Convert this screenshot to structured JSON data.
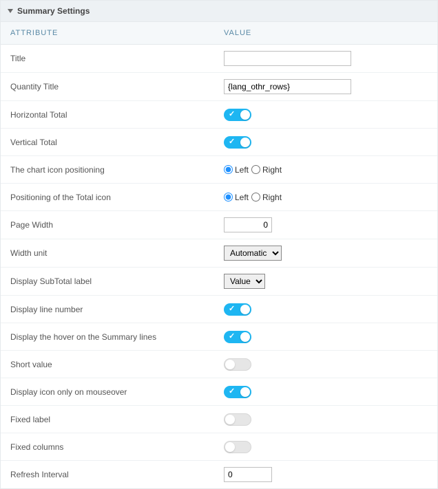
{
  "panel": {
    "title": "Summary Settings",
    "columns": {
      "attribute": "ATTRIBUTE",
      "value": "VALUE"
    }
  },
  "rows": {
    "title": {
      "label": "Title",
      "value": ""
    },
    "quantity_title": {
      "label": "Quantity Title",
      "value": "{lang_othr_rows}"
    },
    "horizontal_total": {
      "label": "Horizontal Total",
      "on": true
    },
    "vertical_total": {
      "label": "Vertical Total",
      "on": true
    },
    "chart_icon_pos": {
      "label": "The chart icon positioning",
      "options": {
        "left": "Left",
        "right": "Right"
      },
      "selected": "left"
    },
    "total_icon_pos": {
      "label": "Positioning of the Total icon",
      "options": {
        "left": "Left",
        "right": "Right"
      },
      "selected": "left"
    },
    "page_width": {
      "label": "Page Width",
      "value": "0"
    },
    "width_unit": {
      "label": "Width unit",
      "selected": "Automatic",
      "options": [
        "Automatic"
      ]
    },
    "display_subtotal": {
      "label": "Display SubTotal label",
      "selected": "Value",
      "options": [
        "Value"
      ]
    },
    "display_line_number": {
      "label": "Display line number",
      "on": true
    },
    "display_hover": {
      "label": "Display the hover on the Summary lines",
      "on": true
    },
    "short_value": {
      "label": "Short value",
      "on": false
    },
    "display_icon_mouseover": {
      "label": "Display icon only on mouseover",
      "on": true
    },
    "fixed_label": {
      "label": "Fixed label",
      "on": false
    },
    "fixed_columns": {
      "label": "Fixed columns",
      "on": false
    },
    "refresh_interval": {
      "label": "Refresh Interval",
      "value": "0"
    }
  }
}
